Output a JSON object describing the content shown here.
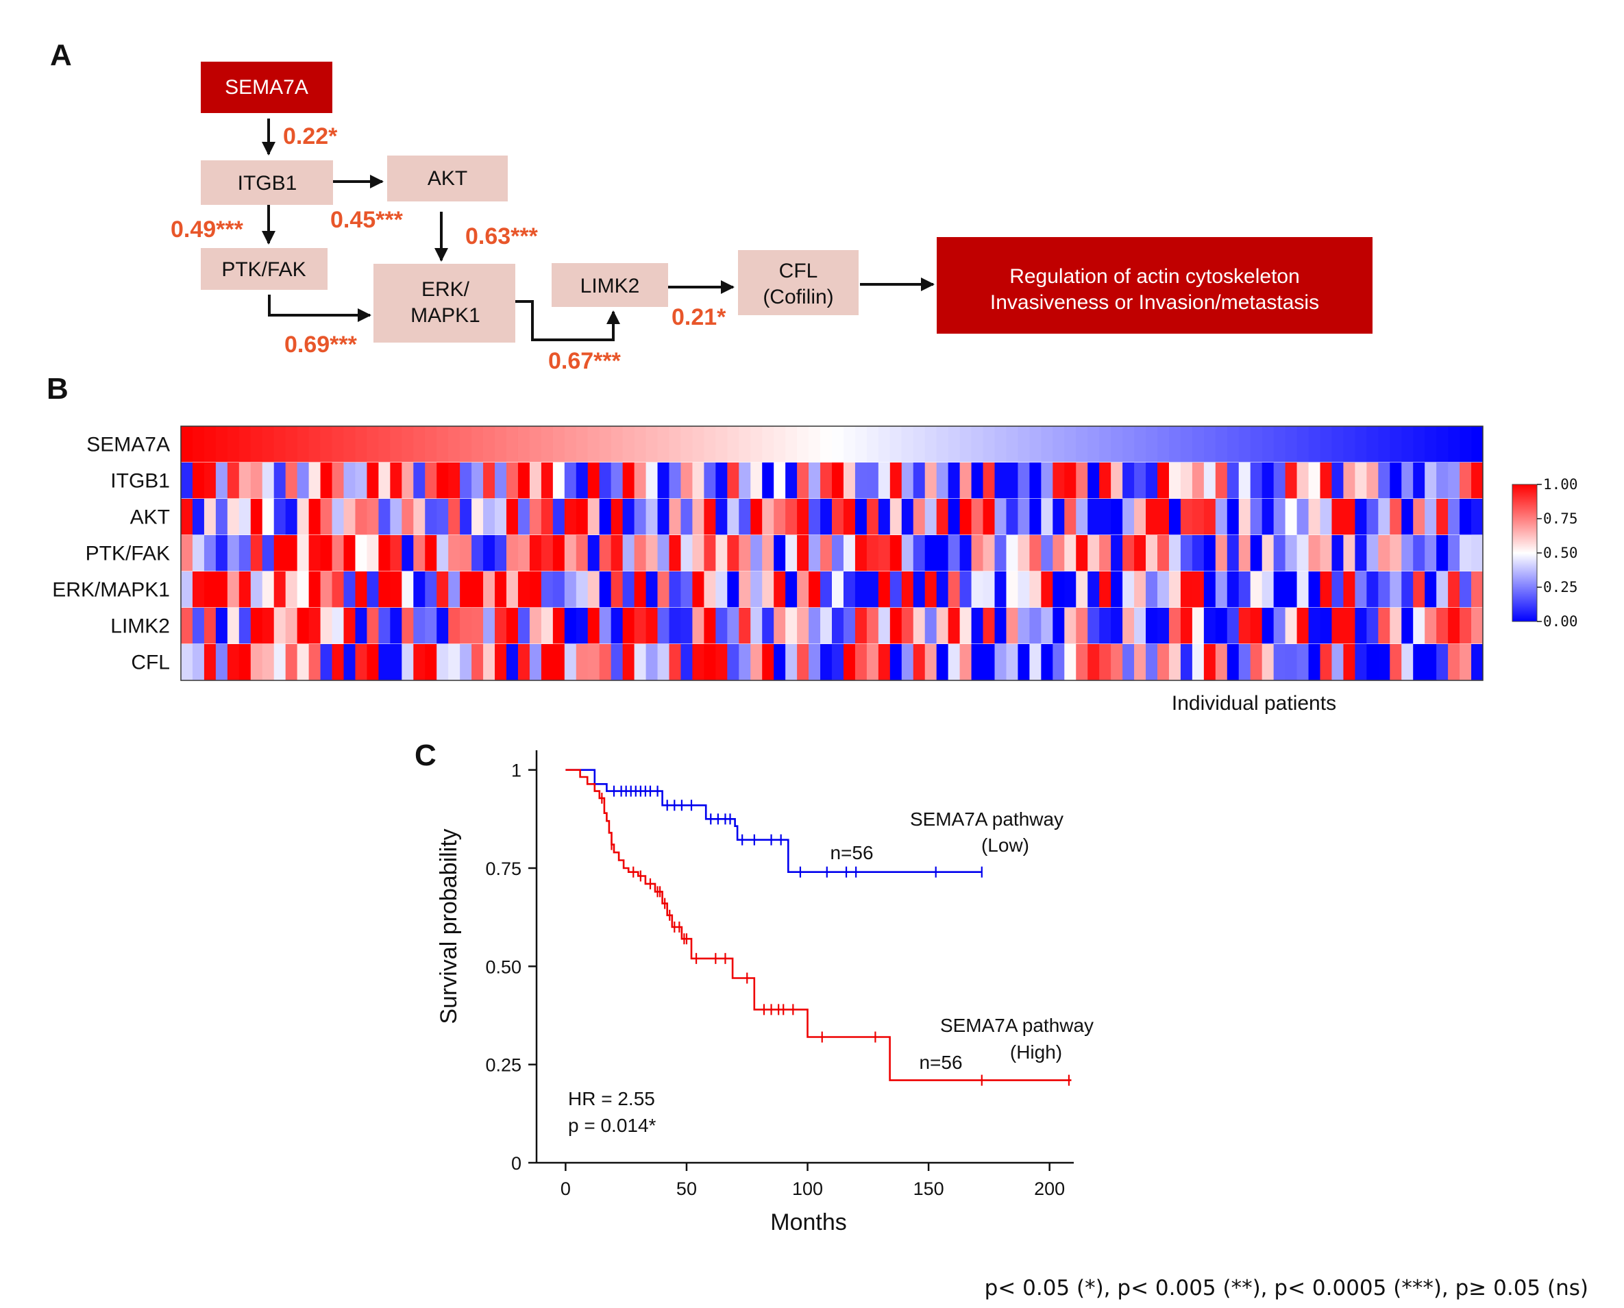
{
  "panels": {
    "a": "A",
    "b": "B",
    "c": "C"
  },
  "pathway": {
    "nodes": {
      "sema7a": "SEMA7A",
      "itgb1": "ITGB1",
      "akt": "AKT",
      "ptk": "PTK/FAK",
      "erk_line1": "ERK/",
      "erk_line2": "MAPK1",
      "limk2": "LIMK2",
      "cfl_line1": "CFL",
      "cfl_line2": "(Cofilin)",
      "outcome_line1": "Regulation of actin cytoskeleton",
      "outcome_line2": "Invasiveness or Invasion/metastasis"
    },
    "correlations": {
      "sema7a_itgb1": "0.22*",
      "itgb1_ptk": "0.49***",
      "itgb1_akt": "0.45***",
      "akt_erk": "0.63***",
      "ptk_erk": "0.69***",
      "erk_limk2": "0.67***",
      "limk2_cfl": "0.21*"
    },
    "colors": {
      "highlight": "#c00000",
      "node": "#ebcbc4",
      "corr": "#e8562a"
    }
  },
  "heatmap": {
    "rows": [
      "SEMA7A",
      "ITGB1",
      "AKT",
      "PTK/FAK",
      "ERK/MAPK1",
      "LIMK2",
      "CFL"
    ],
    "n_patients": 112,
    "xlabel": "Individual patients",
    "colorbar_ticks": [
      "1.00",
      "0.75",
      "0.50",
      "0.25",
      "0.00"
    ],
    "colors": {
      "high": "#ff0000",
      "mid": "#ffffff",
      "low": "#0000ff"
    }
  },
  "chart_data": {
    "type": "line",
    "title": "",
    "xlabel": "Months",
    "ylabel": "Survival probability",
    "xlim": [
      -12,
      210
    ],
    "ylim": [
      0,
      1.05
    ],
    "xticks": [
      "0",
      "50",
      "100",
      "150",
      "200"
    ],
    "yticks": [
      "0",
      "0.25",
      "0.50",
      "0.75",
      "1"
    ],
    "series": [
      {
        "name": "SEMA7A pathway (Low)",
        "label_line1": "SEMA7A pathway",
        "label_line2": "(Low)",
        "n_label": "n=56",
        "color": "#0000ee",
        "steps": [
          [
            0,
            1.0
          ],
          [
            12,
            0.964
          ],
          [
            17,
            0.946
          ],
          [
            40,
            0.91
          ],
          [
            58,
            0.875
          ],
          [
            70,
            0.857
          ],
          [
            71,
            0.822
          ],
          [
            92,
            0.74
          ],
          [
            172,
            0.74
          ]
        ],
        "censored": [
          20,
          23,
          25,
          27,
          29,
          31,
          33,
          35,
          38,
          42,
          45,
          48,
          52,
          60,
          63,
          66,
          68,
          73,
          78,
          85,
          89,
          97,
          108,
          116,
          120,
          153,
          172
        ]
      },
      {
        "name": "SEMA7A pathway (High)",
        "label_line1": "SEMA7A pathway",
        "label_line2": "(High)",
        "n_label": "n=56",
        "color": "#ee0000",
        "steps": [
          [
            0,
            1.0
          ],
          [
            6,
            0.982
          ],
          [
            9,
            0.964
          ],
          [
            12,
            0.946
          ],
          [
            14,
            0.928
          ],
          [
            16,
            0.89
          ],
          [
            17,
            0.87
          ],
          [
            18,
            0.84
          ],
          [
            19,
            0.81
          ],
          [
            20,
            0.79
          ],
          [
            22,
            0.77
          ],
          [
            24,
            0.75
          ],
          [
            26,
            0.74
          ],
          [
            30,
            0.73
          ],
          [
            33,
            0.71
          ],
          [
            37,
            0.69
          ],
          [
            40,
            0.66
          ],
          [
            42,
            0.63
          ],
          [
            44,
            0.6
          ],
          [
            48,
            0.57
          ],
          [
            52,
            0.52
          ],
          [
            69,
            0.47
          ],
          [
            78,
            0.39
          ],
          [
            100,
            0.32
          ],
          [
            134,
            0.21
          ],
          [
            209,
            0.21
          ]
        ],
        "censored": [
          15,
          19,
          28,
          31,
          35,
          38,
          39,
          41,
          43,
          45,
          47,
          49,
          50,
          54,
          62,
          66,
          75,
          82,
          85,
          88,
          90,
          94,
          106,
          128,
          172,
          208
        ]
      }
    ],
    "annotations": {
      "hr": "HR = 2.55",
      "p": "p = 0.014*"
    }
  },
  "footnote": "p< 0.05 (*), p< 0.005 (**), p< 0.0005 (***),  p≥ 0.05 (ns)"
}
